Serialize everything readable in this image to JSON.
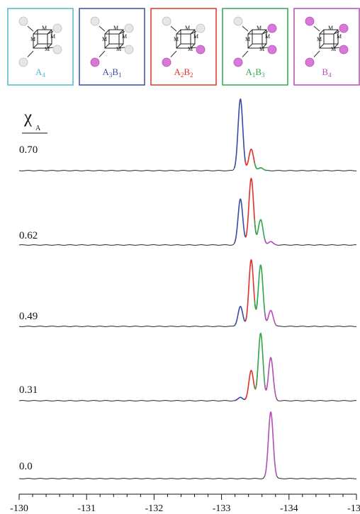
{
  "legend_boxes": [
    {
      "label": "A4",
      "color": "#4fb8c9",
      "pink_sites": 0
    },
    {
      "label": "A3B1",
      "color": "#3a4aa8",
      "pink_sites": 1
    },
    {
      "label": "A2B2",
      "color": "#e2322a",
      "pink_sites": 2
    },
    {
      "label": "A1B3",
      "color": "#2ea84a",
      "pink_sites": 3
    },
    {
      "label": "B4",
      "color": "#b44fb4",
      "pink_sites": 4
    }
  ],
  "cube_atom_label": "M",
  "colors": {
    "A3B1": "#3a4aa8",
    "A2B2": "#e2322a",
    "A1B3": "#2ea84a",
    "B4": "#b44fb4",
    "baseline": "#222222",
    "sphere_white": "#e6e6e6",
    "sphere_pink": "#d878d8"
  },
  "chart_data": {
    "type": "line",
    "title": "",
    "series_label": "χA",
    "xlabel": "",
    "ylabel": "",
    "xlim": [
      -130,
      -135
    ],
    "x_ticks": [
      -130,
      -131,
      -132,
      -133,
      -134,
      -135
    ],
    "x_tick_labels": [
      "-130",
      "-131",
      "-132",
      "-133",
      "-134",
      "-135"
    ],
    "peak_positions": {
      "A3B1": -133.28,
      "A2B2": -133.44,
      "A1B3": -133.58,
      "B4": -133.73
    },
    "traces": [
      {
        "label": "0.70",
        "peaks": [
          {
            "species": "A3B1",
            "x": -133.28,
            "height": 1.0
          },
          {
            "species": "A2B2",
            "x": -133.44,
            "height": 0.3
          },
          {
            "species": "A1B3",
            "x": -133.58,
            "height": 0.04
          }
        ]
      },
      {
        "label": "0.62",
        "peaks": [
          {
            "species": "A3B1",
            "x": -133.28,
            "height": 0.69
          },
          {
            "species": "A2B2",
            "x": -133.44,
            "height": 1.0
          },
          {
            "species": "A1B3",
            "x": -133.58,
            "height": 0.38
          },
          {
            "species": "B4",
            "x": -133.73,
            "height": 0.05
          }
        ]
      },
      {
        "label": "0.49",
        "peaks": [
          {
            "species": "A3B1",
            "x": -133.28,
            "height": 0.3
          },
          {
            "species": "A2B2",
            "x": -133.44,
            "height": 1.0
          },
          {
            "species": "A1B3",
            "x": -133.58,
            "height": 0.92
          },
          {
            "species": "B4",
            "x": -133.73,
            "height": 0.24
          }
        ]
      },
      {
        "label": "0.31",
        "peaks": [
          {
            "species": "A3B1",
            "x": -133.28,
            "height": 0.05
          },
          {
            "species": "A2B2",
            "x": -133.44,
            "height": 0.45
          },
          {
            "species": "A1B3",
            "x": -133.58,
            "height": 1.0
          },
          {
            "species": "B4",
            "x": -133.73,
            "height": 0.64
          }
        ]
      },
      {
        "label": "0.0",
        "peaks": [
          {
            "species": "B4",
            "x": -133.73,
            "height": 1.0
          }
        ]
      }
    ]
  }
}
